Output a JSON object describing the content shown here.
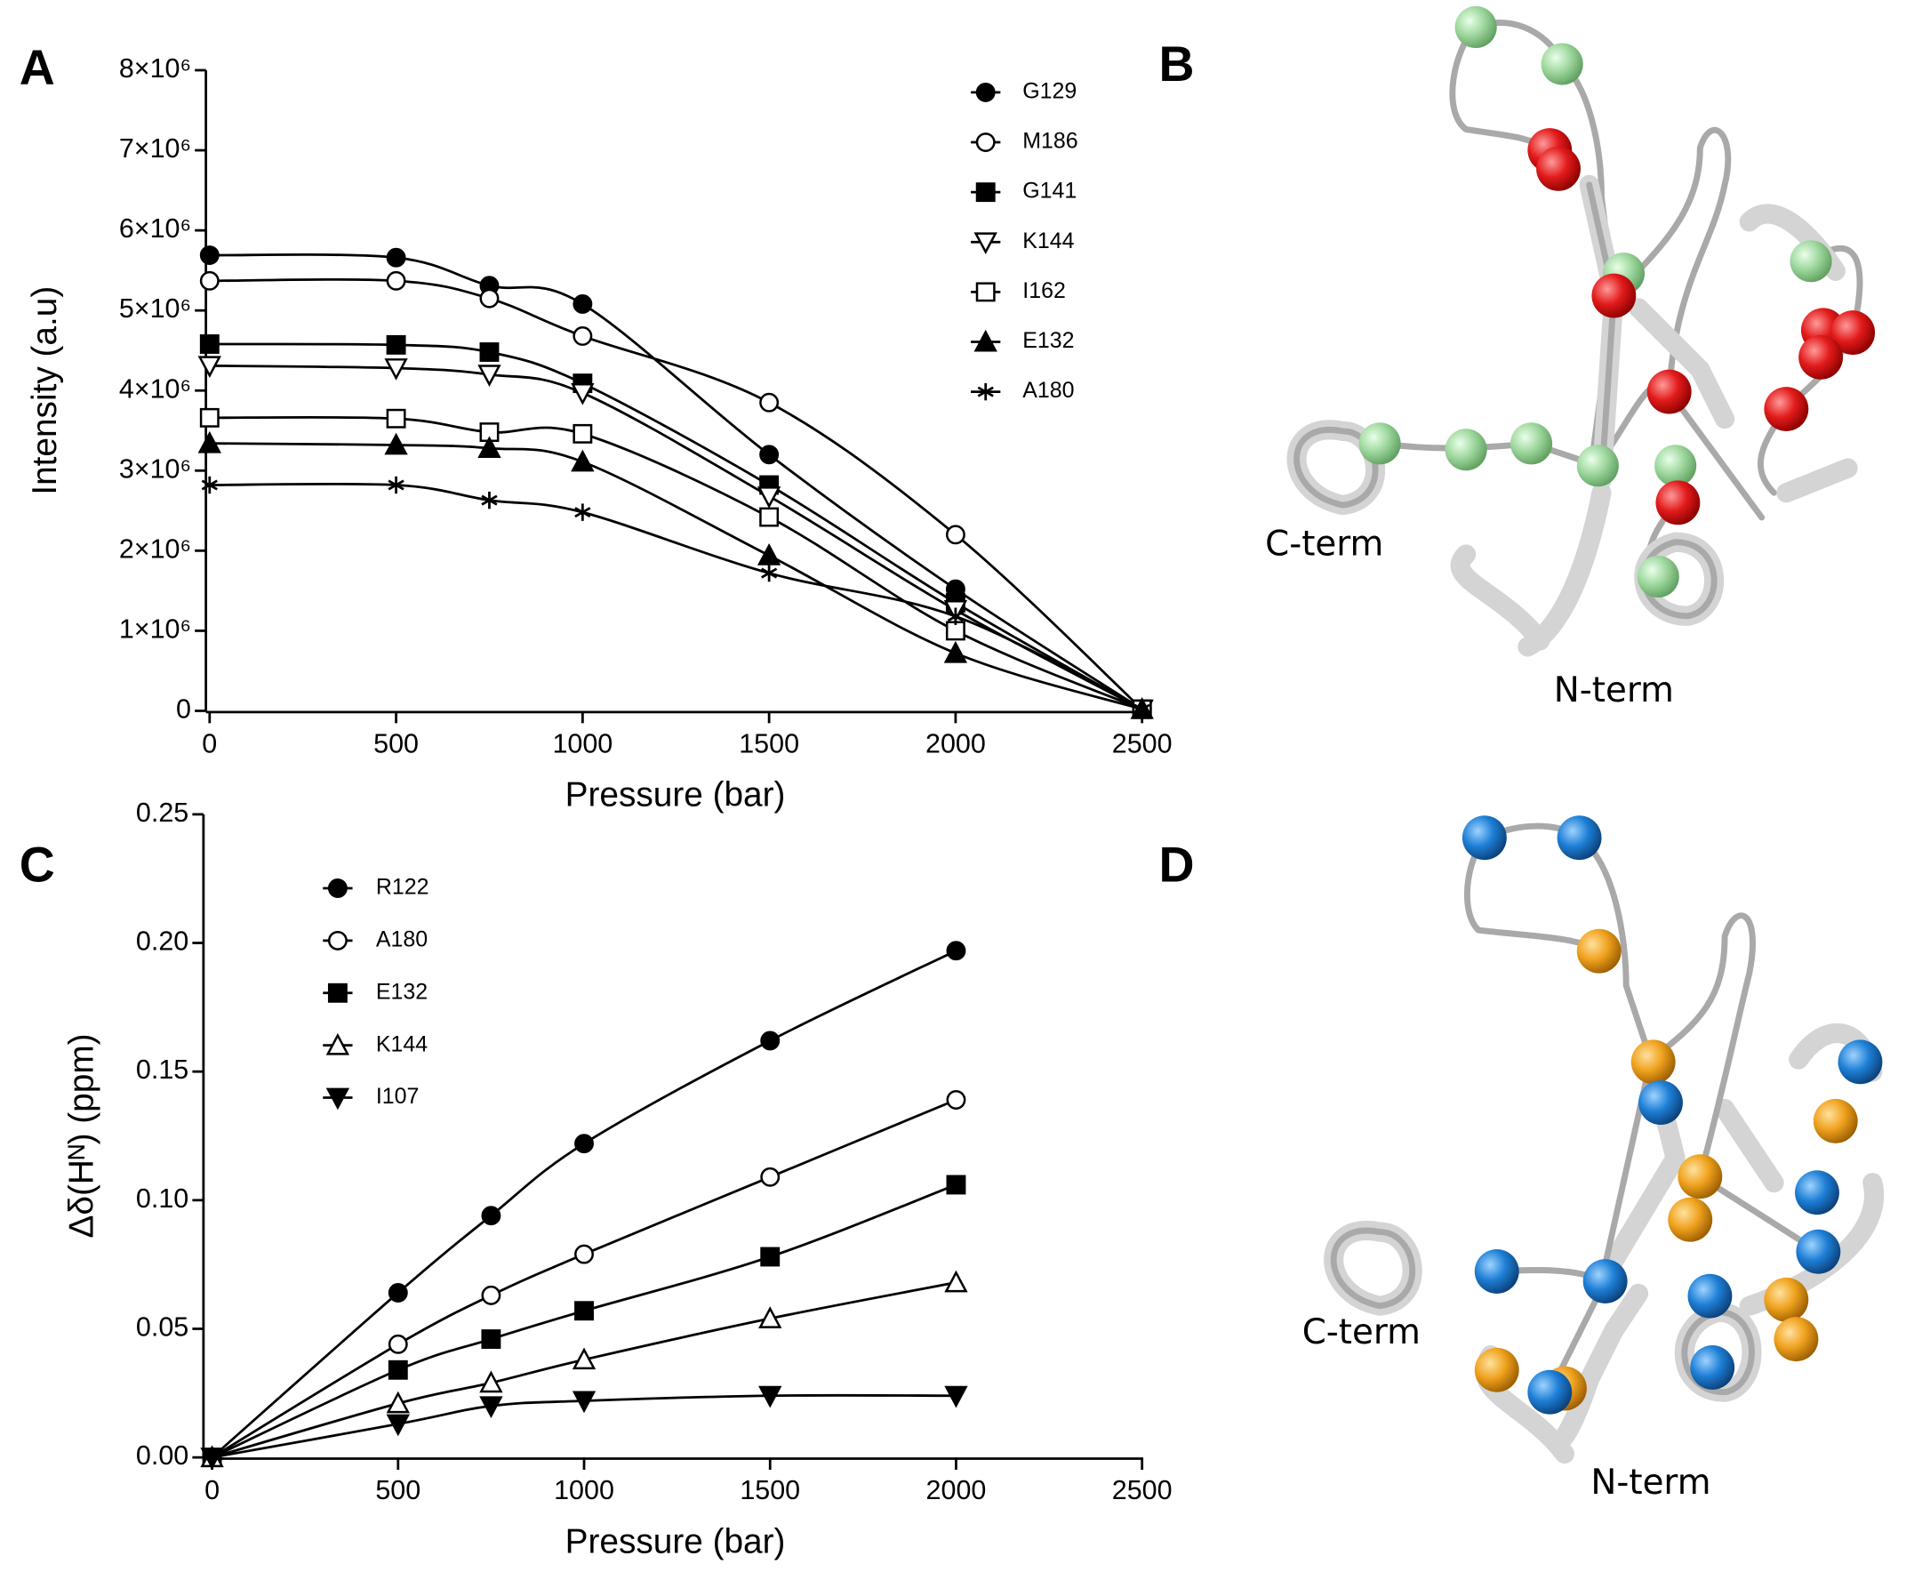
{
  "chart_data": [
    {
      "type": "line",
      "panel": "A",
      "x_label": "Pressure (bar)",
      "y_label": "Intensity (a.u)",
      "x": [
        0,
        500,
        750,
        1000,
        1500,
        2000,
        2500
      ],
      "xlim": [
        0,
        2500
      ],
      "xticks": [
        0,
        500,
        1000,
        1500,
        2000,
        2500
      ],
      "ylim": [
        0,
        8000000
      ],
      "yticks": [
        0,
        {
          "value": 1000000,
          "label": "1×10⁶"
        },
        {
          "value": 2000000,
          "label": "2×10⁶"
        },
        {
          "value": 3000000,
          "label": "3×10⁶"
        },
        {
          "value": 4000000,
          "label": "4×10⁶"
        },
        {
          "value": 5000000,
          "label": "5×10⁶"
        },
        {
          "value": 6000000,
          "label": "6×10⁶"
        },
        {
          "value": 7000000,
          "label": "7×10⁶"
        },
        {
          "value": 8000000,
          "label": "8×10⁶"
        }
      ],
      "series": [
        {
          "name": "G129",
          "color": "#000000",
          "marker": "circle",
          "filled": true,
          "values": [
            5690000,
            5660000,
            5310000,
            5080000,
            3200000,
            1520000,
            20000
          ]
        },
        {
          "name": "M186",
          "color": "#000000",
          "marker": "circle",
          "filled": false,
          "values": [
            5370000,
            5370000,
            5150000,
            4680000,
            3850000,
            2200000,
            20000
          ]
        },
        {
          "name": "G141",
          "color": "#000000",
          "marker": "square",
          "filled": true,
          "values": [
            4580000,
            4570000,
            4480000,
            4090000,
            2820000,
            1350000,
            20000
          ]
        },
        {
          "name": "K144",
          "color": "#000000",
          "marker": "triangle-down",
          "filled": false,
          "values": [
            4310000,
            4280000,
            4200000,
            3970000,
            2680000,
            1260000,
            20000
          ]
        },
        {
          "name": "I162",
          "color": "#000000",
          "marker": "square",
          "filled": false,
          "values": [
            3660000,
            3650000,
            3480000,
            3460000,
            2420000,
            1000000,
            20000
          ]
        },
        {
          "name": "E132",
          "color": "#000000",
          "marker": "triangle-up",
          "filled": true,
          "values": [
            3340000,
            3320000,
            3280000,
            3110000,
            1940000,
            720000,
            20000
          ]
        },
        {
          "name": "A180",
          "color": "#000000",
          "marker": "asterisk",
          "filled": true,
          "values": [
            2820000,
            2820000,
            2630000,
            2480000,
            1720000,
            1180000,
            20000
          ]
        }
      ]
    },
    {
      "type": "line",
      "panel": "C",
      "x_label": "Pressure (bar)",
      "y_label": "Δδ(Hᴺ) (ppm)",
      "x": [
        0,
        500,
        750,
        1000,
        1500,
        2000
      ],
      "xlim": [
        0,
        2500
      ],
      "xticks": [
        0,
        500,
        1000,
        1500,
        2000,
        2500
      ],
      "ylim": [
        0,
        0.25
      ],
      "yticks": [
        {
          "value": 0,
          "label": "0.00"
        },
        0.05,
        {
          "value": 0.1,
          "label": "0.10"
        },
        0.15,
        {
          "value": 0.2,
          "label": "0.20"
        },
        0.25
      ],
      "series": [
        {
          "name": "R122",
          "color": "#000000",
          "marker": "circle",
          "filled": true,
          "values": [
            0,
            0.064,
            0.094,
            0.122,
            0.162,
            0.197
          ]
        },
        {
          "name": "A180",
          "color": "#000000",
          "marker": "circle",
          "filled": false,
          "values": [
            0,
            0.044,
            0.063,
            0.079,
            0.109,
            0.139
          ]
        },
        {
          "name": "E132",
          "color": "#000000",
          "marker": "square",
          "filled": true,
          "values": [
            0,
            0.034,
            0.046,
            0.057,
            0.078,
            0.106
          ]
        },
        {
          "name": "K144",
          "color": "#000000",
          "marker": "triangle-up",
          "filled": false,
          "values": [
            0,
            0.021,
            0.029,
            0.038,
            0.054,
            0.068
          ]
        },
        {
          "name": "I107",
          "color": "#000000",
          "marker": "triangle-down",
          "filled": true,
          "values": [
            0,
            0.013,
            0.02,
            0.022,
            0.024,
            0.024
          ]
        }
      ]
    }
  ],
  "structures": [
    {
      "panel": "B",
      "labels": [
        "C-term",
        "N-term"
      ]
    },
    {
      "panel": "D",
      "labels": [
        "C-term",
        "N-term"
      ]
    }
  ]
}
